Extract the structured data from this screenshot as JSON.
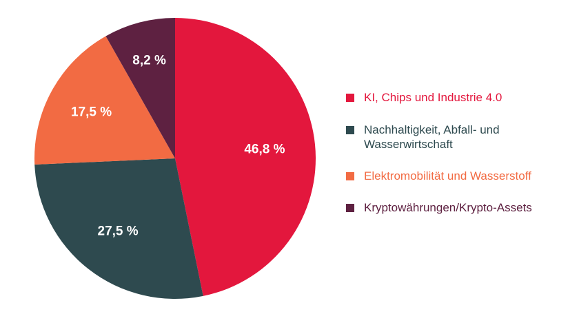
{
  "chart_data": {
    "type": "pie",
    "title": "",
    "categories": [
      "KI, Chips und Industrie 4.0",
      "Nachhaltigkeit, Abfall- und Wasserwirtschaft",
      "Elektromobilität und Wasserstoff",
      "Kryptowährungen/Krypto-Assets"
    ],
    "values": [
      46.8,
      27.5,
      17.5,
      8.2
    ],
    "value_labels": [
      "46,8 %",
      "27,5 %",
      "17,5 %",
      "8,2 %"
    ],
    "colors": [
      "#e3173d",
      "#2e4a4f",
      "#f26b43",
      "#5e2141"
    ],
    "legend": {
      "placement": "right",
      "items": [
        {
          "label": "KI, Chips und Industrie 4.0",
          "color": "#e3173d"
        },
        {
          "label": "Nachhaltigkeit, Abfall- und Wasserwirtschaft",
          "color": "#2e4a4f"
        },
        {
          "label": "Elektromobilität und Wasserstoff",
          "color": "#f26b43"
        },
        {
          "label": "Kryptowährungen/Krypto-Assets",
          "color": "#5e2141"
        }
      ]
    }
  }
}
